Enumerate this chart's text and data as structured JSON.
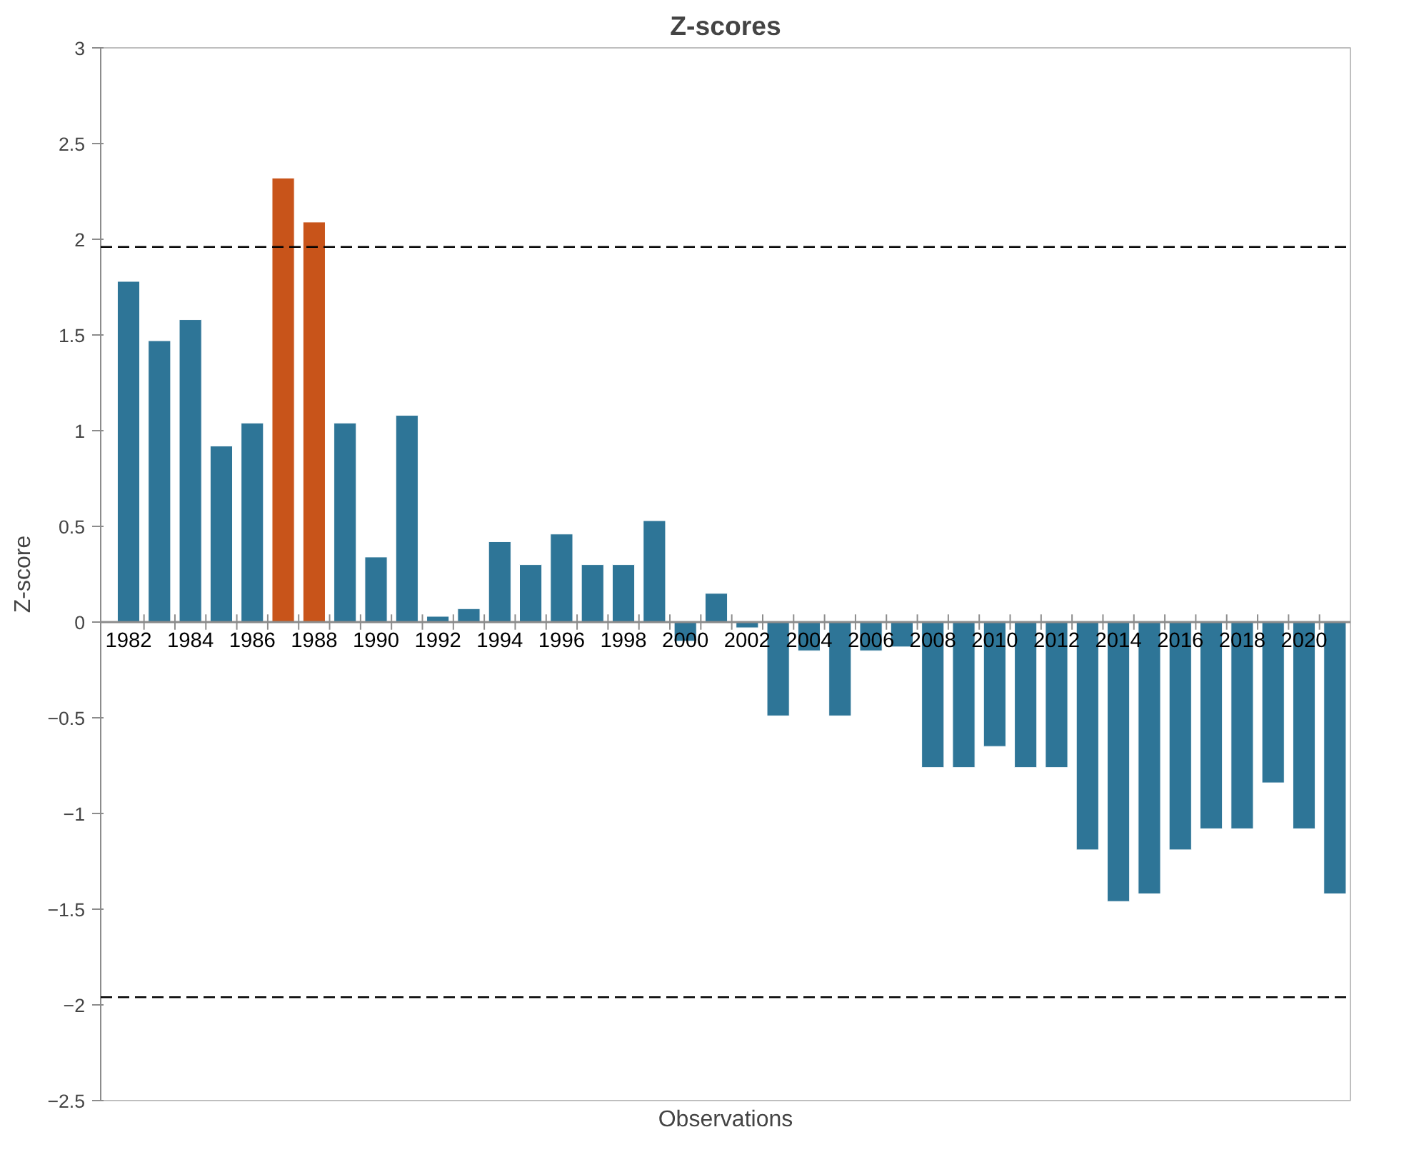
{
  "chart_data": {
    "type": "bar",
    "title": "Z-scores",
    "xlabel": "Observations",
    "ylabel": "Z-score",
    "categories": [
      "1982",
      null,
      "1984",
      null,
      "1986",
      null,
      "1988",
      null,
      "1990",
      null,
      "1992",
      null,
      "1994",
      null,
      "1996",
      null,
      "1998",
      null,
      "2000",
      null,
      "2002",
      null,
      "2004",
      null,
      "2006",
      null,
      "2008",
      null,
      "2010",
      null,
      "2012",
      null,
      "2014",
      null,
      "2016",
      null,
      "2018",
      null,
      "2020",
      null
    ],
    "values": [
      1.78,
      1.47,
      1.58,
      0.92,
      1.04,
      2.32,
      2.09,
      1.04,
      0.34,
      1.08,
      0.03,
      0.07,
      0.42,
      0.3,
      0.46,
      0.3,
      0.3,
      0.53,
      -0.1,
      0.15,
      -0.03,
      -0.49,
      -0.15,
      -0.49,
      -0.15,
      -0.13,
      -0.76,
      -0.76,
      -0.65,
      -0.76,
      -0.76,
      -1.19,
      -1.46,
      -1.42,
      -1.19,
      -1.08,
      -1.08,
      -0.84,
      -1.08,
      -1.42
    ],
    "colors": [
      "#2e7597",
      "#2e7597",
      "#2e7597",
      "#2e7597",
      "#2e7597",
      "#c8541a",
      "#c8541a",
      "#2e7597",
      "#2e7597",
      "#2e7597",
      "#2e7597",
      "#2e7597",
      "#2e7597",
      "#2e7597",
      "#2e7597",
      "#2e7597",
      "#2e7597",
      "#2e7597",
      "#2e7597",
      "#2e7597",
      "#2e7597",
      "#2e7597",
      "#2e7597",
      "#2e7597",
      "#2e7597",
      "#2e7597",
      "#2e7597",
      "#2e7597",
      "#2e7597",
      "#2e7597",
      "#2e7597",
      "#2e7597",
      "#2e7597",
      "#2e7597",
      "#2e7597",
      "#2e7597",
      "#2e7597",
      "#2e7597",
      "#2e7597",
      "#2e7597"
    ],
    "ylim": [
      -2.5,
      3
    ],
    "yticks": [
      -2.5,
      -2,
      -1.5,
      -1,
      -0.5,
      0,
      0.5,
      1,
      1.5,
      2,
      2.5,
      3
    ],
    "ref_lines": [
      {
        "axis": "y",
        "value": 1.96,
        "label": null,
        "color": "#000000",
        "line_style": "dashed"
      },
      {
        "axis": "y",
        "value": -1.96,
        "label": null,
        "color": "#000000",
        "line_style": "dashed"
      }
    ],
    "grid": false
  }
}
